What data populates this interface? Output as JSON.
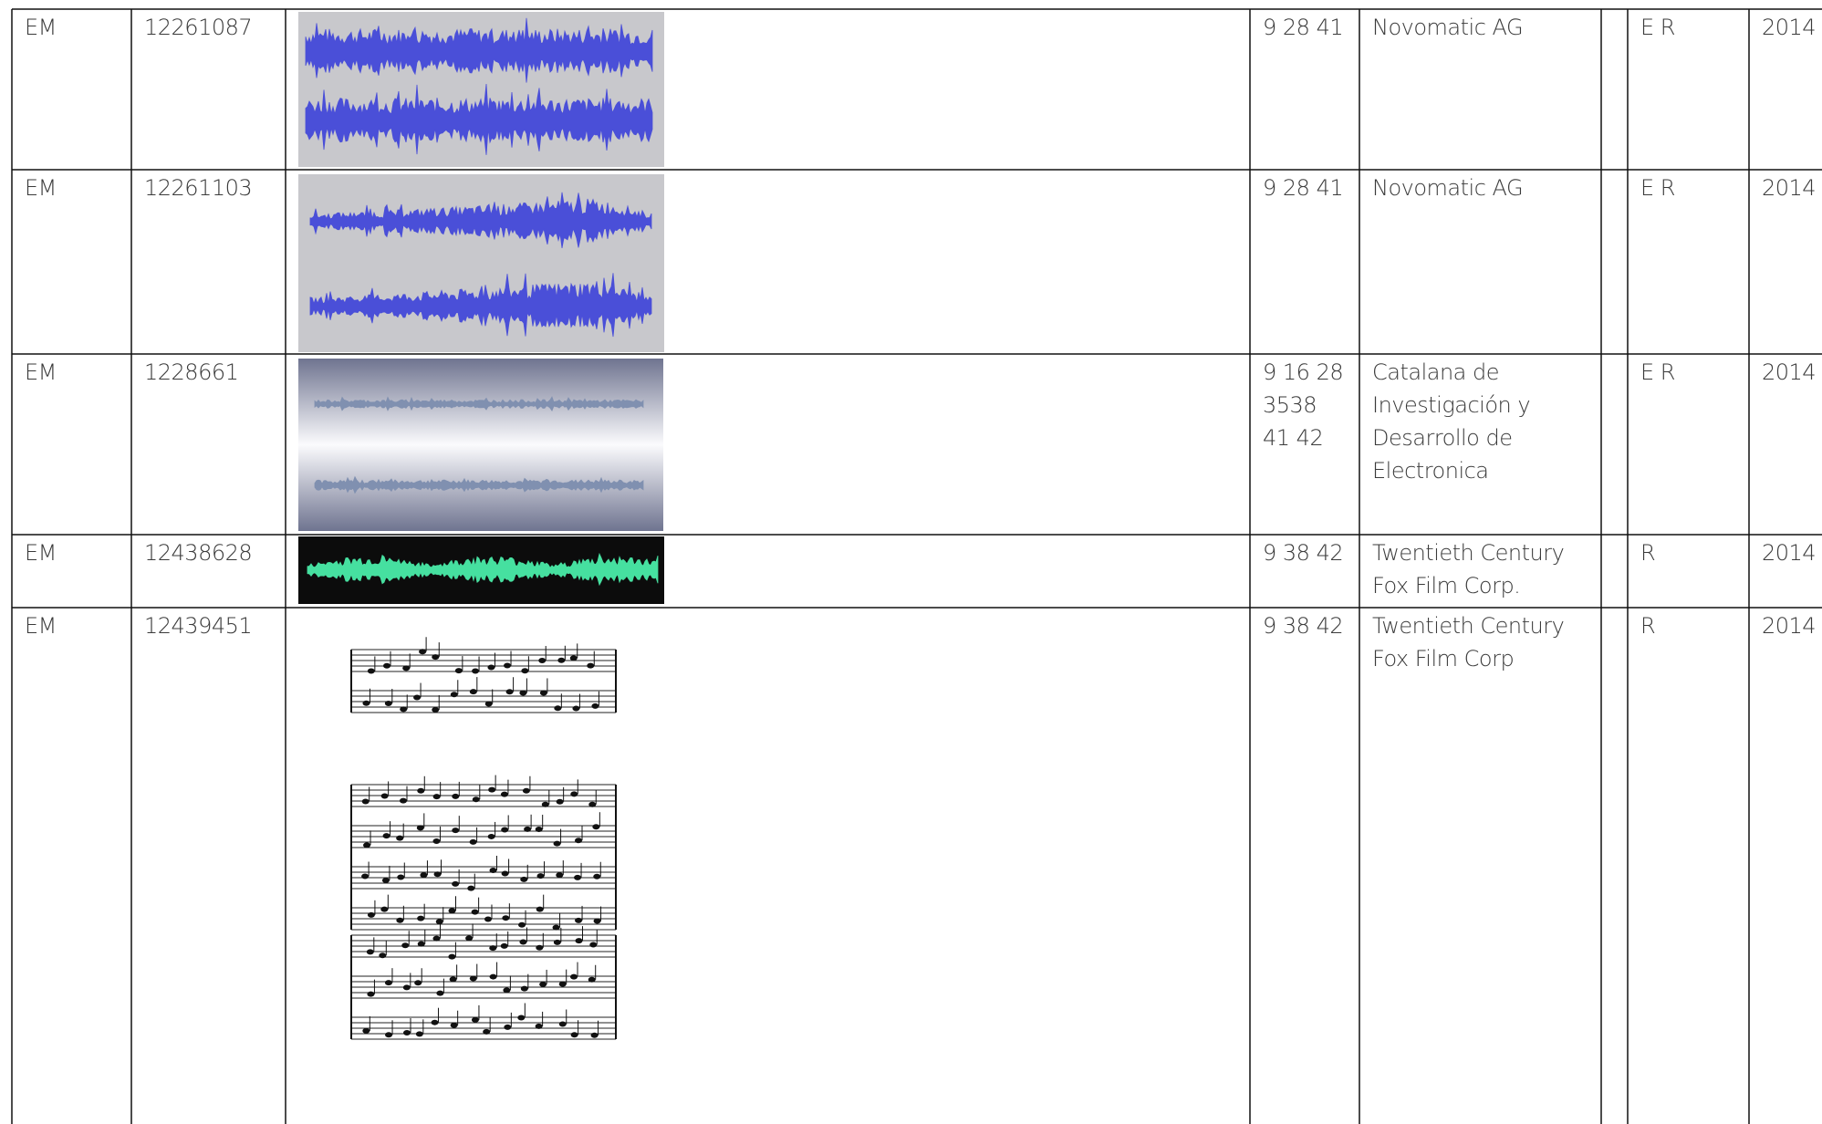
{
  "table": {
    "rows": [
      [
        "EM",
        "12261087",
        "9 28 41",
        "Novomatic AG",
        "E R",
        "2014"
      ],
      [
        "EM",
        "12261103",
        "9 28 41",
        "Novomatic AG",
        "E R",
        "2014"
      ],
      [
        "EM",
        "1228661",
        "9 16 28\n3538\n41 42",
        "Catalana de Investigación y Desarrollo de Electronica",
        "E R",
        "2014"
      ],
      [
        "EM",
        "12438628",
        "9 38 42",
        "Twentieth Century Fox Film Corp.",
        "R",
        "2014"
      ],
      [
        "EM",
        "12439451",
        "9 38 42",
        "Twentieth Century Fox Film Corp",
        "R",
        "2014"
      ]
    ]
  }
}
